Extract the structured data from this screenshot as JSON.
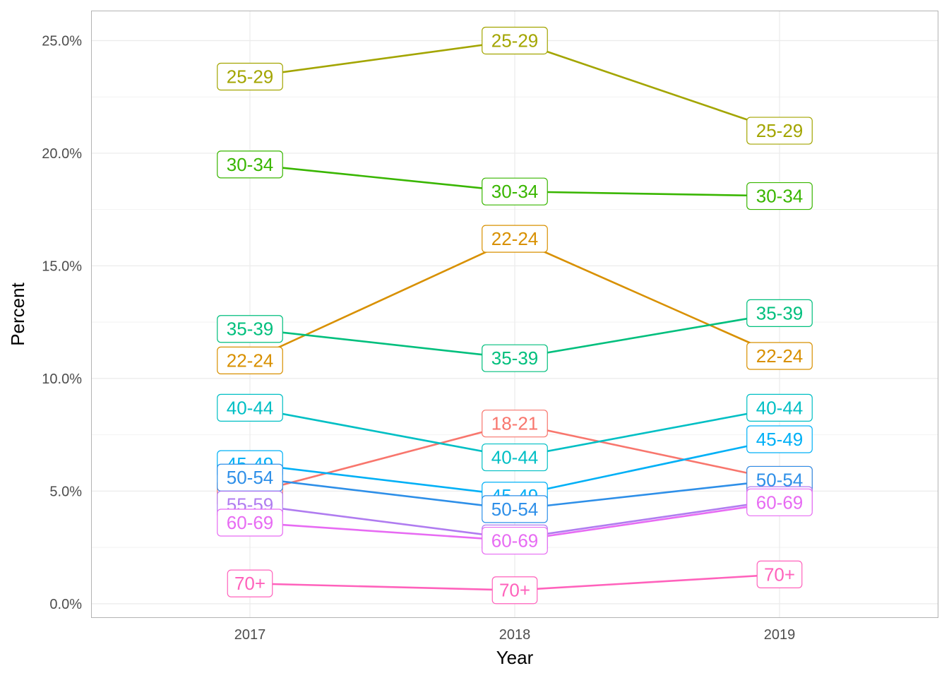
{
  "chart_data": {
    "type": "line",
    "xlabel": "Year",
    "ylabel": "Percent",
    "x": [
      "2017",
      "2018",
      "2019"
    ],
    "ylim": [
      -0.006,
      0.263
    ],
    "y_ticks": [
      0.0,
      0.05,
      0.1,
      0.15,
      0.2,
      0.25
    ],
    "y_tick_labels": [
      "0.0%",
      "5.0%",
      "10.0%",
      "15.0%",
      "20.0%",
      "25.0%"
    ],
    "grid": true,
    "legend": "none (direct labels)",
    "series": [
      {
        "name": "18-21",
        "color": "#F8766D",
        "values": [
          0.049,
          0.08,
          0.055
        ]
      },
      {
        "name": "22-24",
        "color": "#D89000",
        "values": [
          0.108,
          0.162,
          0.11
        ]
      },
      {
        "name": "25-29",
        "color": "#A3A500",
        "values": [
          0.234,
          0.25,
          0.21
        ]
      },
      {
        "name": "30-34",
        "color": "#39B600",
        "values": [
          0.195,
          0.183,
          0.181
        ]
      },
      {
        "name": "35-39",
        "color": "#00BF7D",
        "values": [
          0.122,
          0.109,
          0.129
        ]
      },
      {
        "name": "40-44",
        "color": "#00BFC4",
        "values": [
          0.087,
          0.065,
          0.087
        ]
      },
      {
        "name": "45-49",
        "color": "#00B0F6",
        "values": [
          0.062,
          0.048,
          0.073
        ]
      },
      {
        "name": "50-54",
        "color": "#2E8FE8",
        "values": [
          0.056,
          0.042,
          0.055
        ]
      },
      {
        "name": "55-59",
        "color": "#B07CF0",
        "values": [
          0.044,
          0.029,
          0.046
        ]
      },
      {
        "name": "60-69",
        "color": "#E76BF3",
        "values": [
          0.036,
          0.028,
          0.045
        ]
      },
      {
        "name": "70+",
        "color": "#FF62BC",
        "values": [
          0.009,
          0.006,
          0.013
        ]
      }
    ]
  }
}
